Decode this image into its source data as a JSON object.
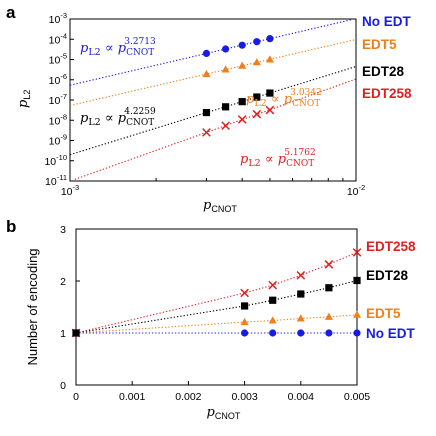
{
  "panels": {
    "a": "a",
    "b": "b"
  },
  "chart_data": [
    {
      "type": "scatter",
      "panel": "a",
      "log_x": true,
      "log_y": true,
      "xlim": [
        0.001,
        0.01
      ],
      "ylim": [
        1e-11,
        0.001
      ],
      "xlabel": "p",
      "xlabel_sub": "CNOT",
      "ylabel": "p",
      "ylabel_sub": "L2",
      "x_ticks": [
        {
          "value": 0.001,
          "base": "10",
          "exp": "-3"
        },
        {
          "value": 0.01,
          "base": "10",
          "exp": "-2"
        }
      ],
      "y_ticks": [
        {
          "value": 0.001,
          "base": "10",
          "exp": "-3"
        },
        {
          "value": 0.0001,
          "base": "10",
          "exp": "-4"
        },
        {
          "value": 1e-05,
          "base": "10",
          "exp": "-5"
        },
        {
          "value": 1e-06,
          "base": "10",
          "exp": "-6"
        },
        {
          "value": 1e-07,
          "base": "10",
          "exp": "-7"
        },
        {
          "value": 1e-08,
          "base": "10",
          "exp": "-8"
        },
        {
          "value": 1e-09,
          "base": "10",
          "exp": "-9"
        },
        {
          "value": 1e-10,
          "base": "10",
          "exp": "-10"
        },
        {
          "value": 1e-11,
          "base": "10",
          "exp": "-11"
        }
      ],
      "x": [
        0.003,
        0.0035,
        0.004,
        0.0045,
        0.005
      ],
      "series": [
        {
          "name": "No EDT",
          "color": "#1a1ae6",
          "marker": "circle",
          "values": [
            2e-05,
            3.3e-05,
            5.1e-05,
            7.6e-05,
            0.000107
          ],
          "fit_exponent": "3.2713"
        },
        {
          "name": "EDT5",
          "color": "#f07f1a",
          "marker": "triangle",
          "values": [
            1.9e-06,
            3.2e-06,
            4.9e-06,
            7.3e-06,
            1e-05
          ],
          "fit_exponent": "3.0342"
        },
        {
          "name": "EDT28",
          "color": "#000000",
          "marker": "square",
          "values": [
            2.4e-08,
            4.6e-08,
            8.3e-08,
            1.4e-07,
            2.2e-07
          ],
          "fit_exponent": "4.2259"
        },
        {
          "name": "EDT258",
          "color": "#e0201f",
          "marker": "cross",
          "values": [
            2.5e-09,
            5.4e-09,
            1.1e-08,
            2e-08,
            3.2e-08
          ],
          "fit_exponent": "5.1762"
        }
      ],
      "fit_label": {
        "lhs": "p",
        "lhs_sub": "L2",
        "prop": "∝",
        "rhs": "p",
        "rhs_sub": "CNOT"
      }
    },
    {
      "type": "scatter",
      "panel": "b",
      "xlim": [
        0,
        0.005
      ],
      "ylim": [
        0,
        3
      ],
      "xlabel": "p",
      "xlabel_sub": "CNOT",
      "ylabel": "Number of encoding",
      "x_ticks": [
        "0",
        "0.001",
        "0.002",
        "0.003",
        "0.004",
        "0.005"
      ],
      "x_tick_values": [
        0,
        0.001,
        0.002,
        0.003,
        0.004,
        0.005
      ],
      "y_ticks": [
        "0",
        "1",
        "2",
        "3"
      ],
      "y_tick_values": [
        0,
        1,
        2,
        3
      ],
      "x": [
        0.003,
        0.0035,
        0.004,
        0.0045,
        0.005
      ],
      "series": [
        {
          "name": "EDT258",
          "color": "#e0201f",
          "marker": "cross",
          "values": [
            1.77,
            1.92,
            2.11,
            2.32,
            2.55
          ]
        },
        {
          "name": "EDT28",
          "color": "#000000",
          "marker": "square",
          "values": [
            1.52,
            1.63,
            1.75,
            1.87,
            2.01
          ]
        },
        {
          "name": "EDT5",
          "color": "#f07f1a",
          "marker": "triangle",
          "values": [
            1.21,
            1.24,
            1.28,
            1.31,
            1.35
          ]
        },
        {
          "name": "No EDT",
          "color": "#1a1ae6",
          "marker": "circle",
          "values": [
            1.0,
            1.0,
            1.0,
            1.0,
            1.0
          ]
        }
      ],
      "origin_point": {
        "x": 0,
        "y": 1
      }
    }
  ]
}
